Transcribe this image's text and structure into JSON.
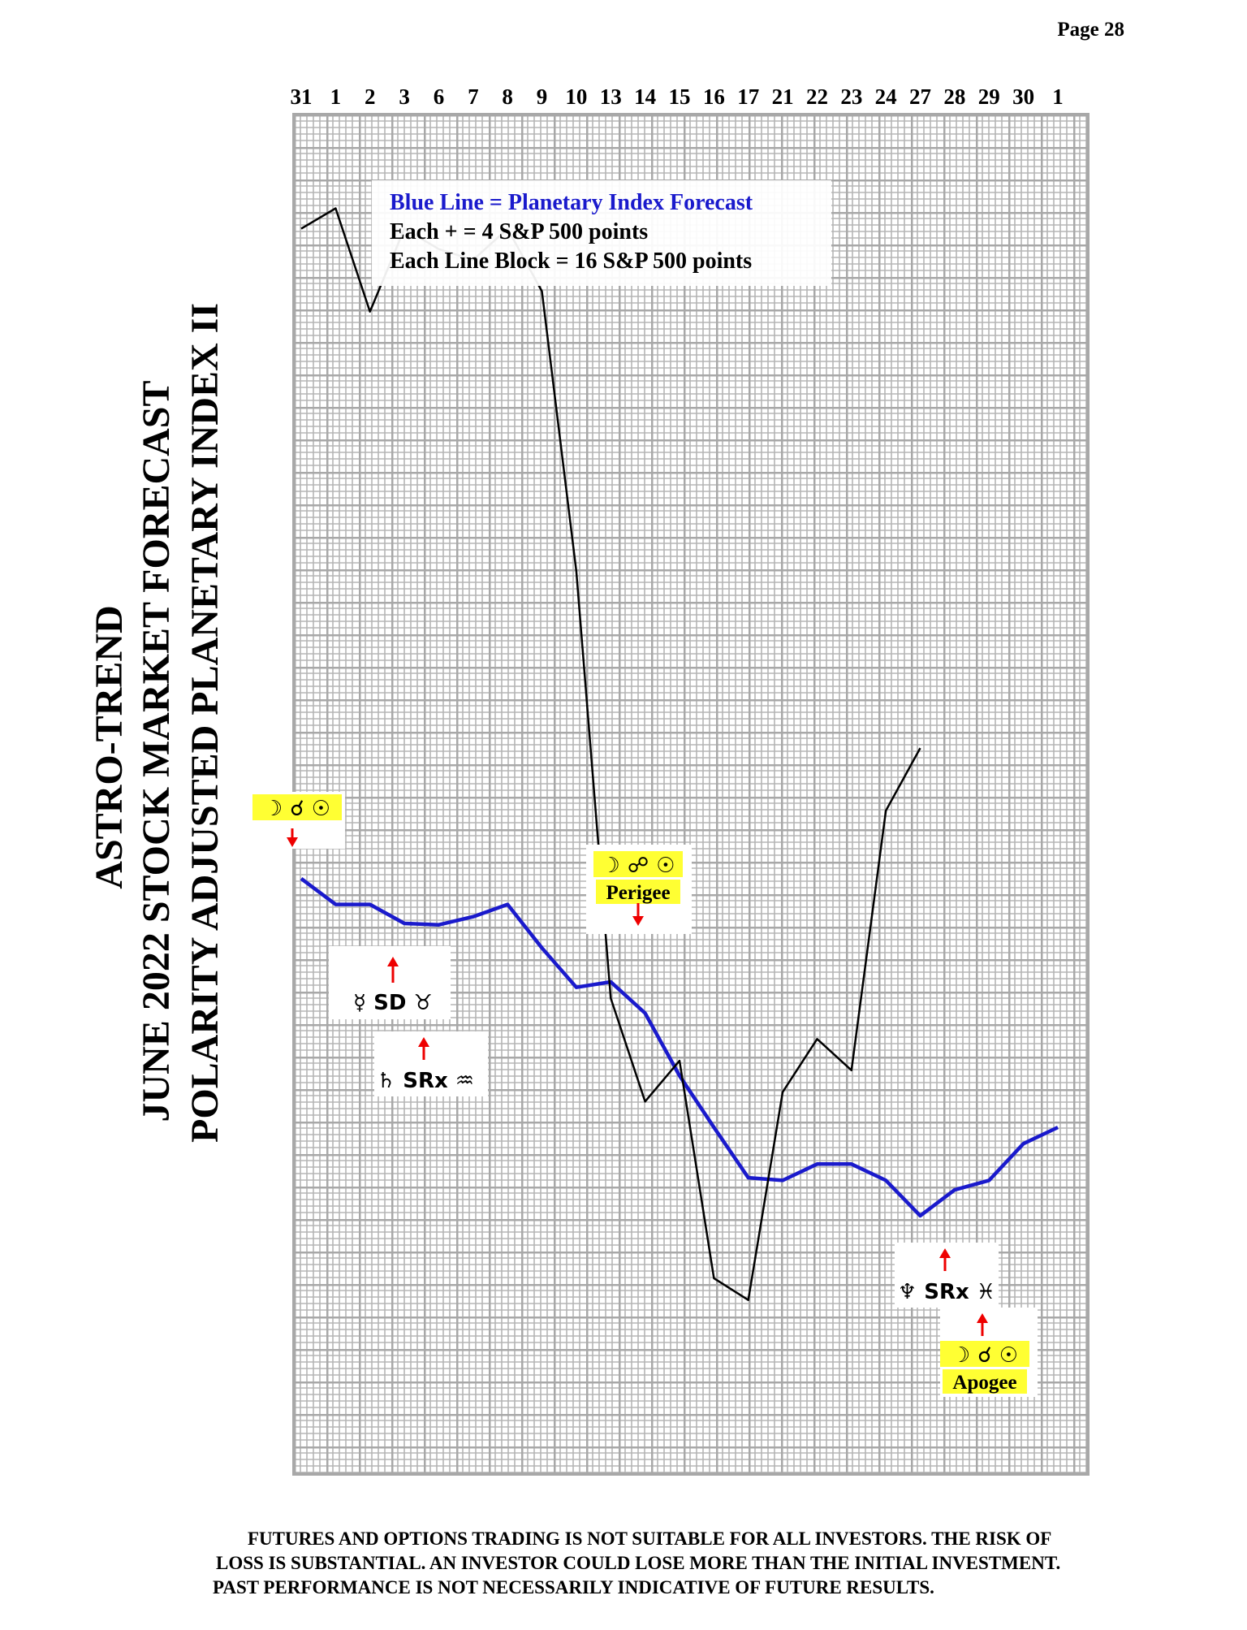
{
  "page": "Page  28",
  "chart_data": {
    "type": "line",
    "title_lines": [
      "ASTRO-TREND",
      "JUNE 2022  STOCK MARKET FORECAST",
      "POLARITY ADJUSTED PLANETARY INDEX II"
    ],
    "legend_lines": [
      "Blue Line = Planetary Index Forecast",
      "Each + = 4 S&P 500 points",
      "Each Line Block = 16 S&P 500 points"
    ],
    "categories": [
      "31",
      "1",
      "2",
      "3",
      "6",
      "7",
      "8",
      "9",
      "10",
      "13",
      "14",
      "15",
      "16",
      "17",
      "21",
      "22",
      "23",
      "24",
      "27",
      "28",
      "29",
      "30",
      "1"
    ],
    "ylim": [
      0,
      100
    ],
    "grid": true,
    "series": [
      {
        "name": "Planetary Index Forecast",
        "color": "#1a1acc",
        "values": [
          43.8,
          41.9,
          41.9,
          40.5,
          40.4,
          41.0,
          41.9,
          38.7,
          35.8,
          36.2,
          33.9,
          29.3,
          25.5,
          21.8,
          21.6,
          22.8,
          22.8,
          21.6,
          19.0,
          20.9,
          21.6,
          24.3,
          25.5
        ]
      },
      {
        "name": "S&P 500",
        "color": "#000000",
        "values": [
          91.6,
          93.1,
          85.5,
          91.6,
          90.1,
          89.3,
          91.6,
          87.0,
          66.4,
          35.0,
          27.4,
          30.4,
          14.4,
          12.8,
          28.1,
          32.0,
          29.7,
          48.8,
          53.4,
          null,
          null,
          null,
          null
        ]
      }
    ],
    "annotations": [
      {
        "text": "☽ ☌ ☉"
      },
      {
        "text": "☽ ☍ ☉",
        "label": "Perigee"
      },
      {
        "text": "☿ SD ♉"
      },
      {
        "text": "♄ SRx ♒"
      },
      {
        "text": "♆ SRx ♓"
      },
      {
        "text": "☽ ☌ ☉",
        "label": "Apogee"
      }
    ]
  },
  "disclaimer": [
    "FUTURES AND OPTIONS TRADING IS NOT SUITABLE FOR ALL INVESTORS.  THE RISK OF",
    "LOSS IS SUBSTANTIAL.  AN INVESTOR COULD LOSE MORE THAN THE INITIAL INVESTMENT.",
    "PAST PERFORMANCE IS NOT NECESSARILY INDICATIVE OF FUTURE RESULTS."
  ]
}
